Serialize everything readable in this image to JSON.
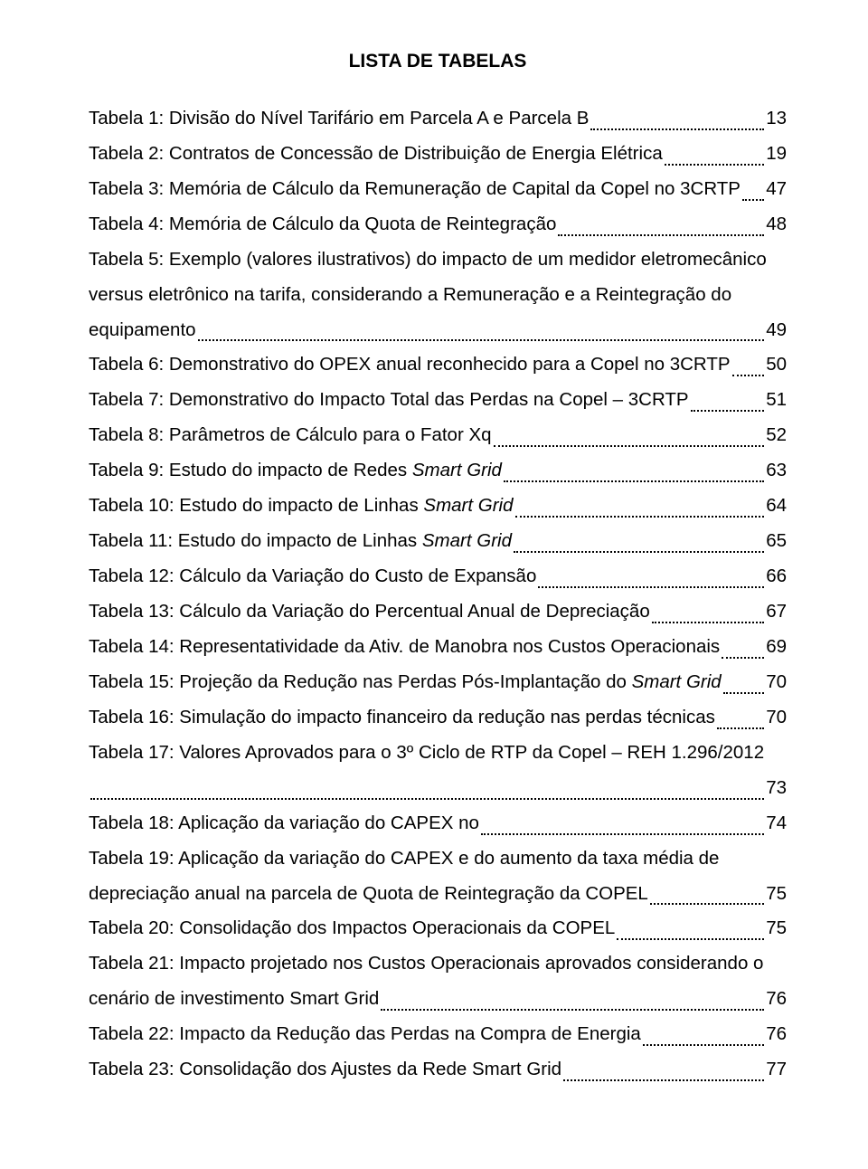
{
  "title": "LISTA DE TABELAS",
  "entries": [
    {
      "kind": "single",
      "label": "Tabela 1: Divisão do Nível Tarifário em Parcela A e Parcela B",
      "page": "13"
    },
    {
      "kind": "single",
      "label": "Tabela 2: Contratos de Concessão de Distribuição de Energia Elétrica",
      "page": "19"
    },
    {
      "kind": "single",
      "label": "Tabela 3: Memória de Cálculo da Remuneração de Capital da Copel no 3CRTP",
      "page": "47"
    },
    {
      "kind": "single",
      "label": "Tabela 4: Memória de Cálculo da Quota de Reintegração",
      "page": "48"
    },
    {
      "kind": "wrap3",
      "line1": "Tabela 5: Exemplo (valores ilustrativos) do impacto de um medidor eletromecânico",
      "line2": "versus eletrônico na tarifa, considerando a Remuneração e a Reintegração do",
      "lastLabel": "equipamento",
      "page": "49"
    },
    {
      "kind": "single",
      "label": "Tabela 6: Demonstrativo do OPEX anual reconhecido para a Copel no 3CRTP",
      "page": "50"
    },
    {
      "kind": "single",
      "label": "Tabela 7: Demonstrativo do Impacto Total das Perdas na Copel – 3CRTP",
      "page": "51"
    },
    {
      "kind": "single",
      "label": "Tabela 8: Parâmetros de Cálculo para o Fator Xq",
      "page": "52"
    },
    {
      "kind": "single-italic-tail",
      "label": "Tabela 9: Estudo do impacto de Redes ",
      "italic": "Smart Grid",
      "page": "63"
    },
    {
      "kind": "single-italic-tail",
      "label": "Tabela 10: Estudo do impacto de Linhas ",
      "italic": "Smart Grid",
      "page": "64"
    },
    {
      "kind": "single-italic-tail",
      "label": "Tabela 11: Estudo do impacto de Linhas ",
      "italic": "Smart Grid",
      "page": "65"
    },
    {
      "kind": "single",
      "label": "Tabela 12: Cálculo da Variação do Custo de Expansão",
      "page": "66"
    },
    {
      "kind": "single",
      "label": "Tabela 13: Cálculo da Variação do Percentual Anual de Depreciação",
      "page": "67"
    },
    {
      "kind": "single",
      "label": "Tabela 14: Representatividade da Ativ. de Manobra nos Custos Operacionais",
      "page": "69"
    },
    {
      "kind": "single-italic-tail",
      "label": "Tabela 15: Projeção da Redução nas Perdas Pós-Implantação do ",
      "italic": "Smart Grid",
      "page": "70"
    },
    {
      "kind": "single",
      "label": "Tabela 16: Simulação do impacto financeiro da redução nas perdas técnicas",
      "page": "70"
    },
    {
      "kind": "wrap2-blank",
      "line1": "Tabela 17: Valores Aprovados para o 3º Ciclo de RTP da Copel – REH 1.296/2012",
      "page": "73"
    },
    {
      "kind": "single",
      "label": "Tabela 18: Aplicação da variação do CAPEX no",
      "page": "74"
    },
    {
      "kind": "wrap2",
      "line1": "Tabela 19: Aplicação da variação do CAPEX e do aumento da taxa média de",
      "lastLabel": "depreciação anual na parcela de Quota de Reintegração da COPEL",
      "page": "75"
    },
    {
      "kind": "single",
      "label": "Tabela 20: Consolidação dos Impactos Operacionais da COPEL",
      "page": "75"
    },
    {
      "kind": "wrap2",
      "line1": "Tabela 21: Impacto projetado nos Custos Operacionais aprovados considerando o",
      "lastLabel": "cenário de investimento Smart Grid",
      "page": "76"
    },
    {
      "kind": "single",
      "label": "Tabela 22: Impacto da Redução das Perdas na Compra de Energia",
      "page": "76"
    },
    {
      "kind": "single",
      "label": "Tabela 23: Consolidação dos Ajustes da Rede Smart Grid",
      "page": "77"
    }
  ]
}
